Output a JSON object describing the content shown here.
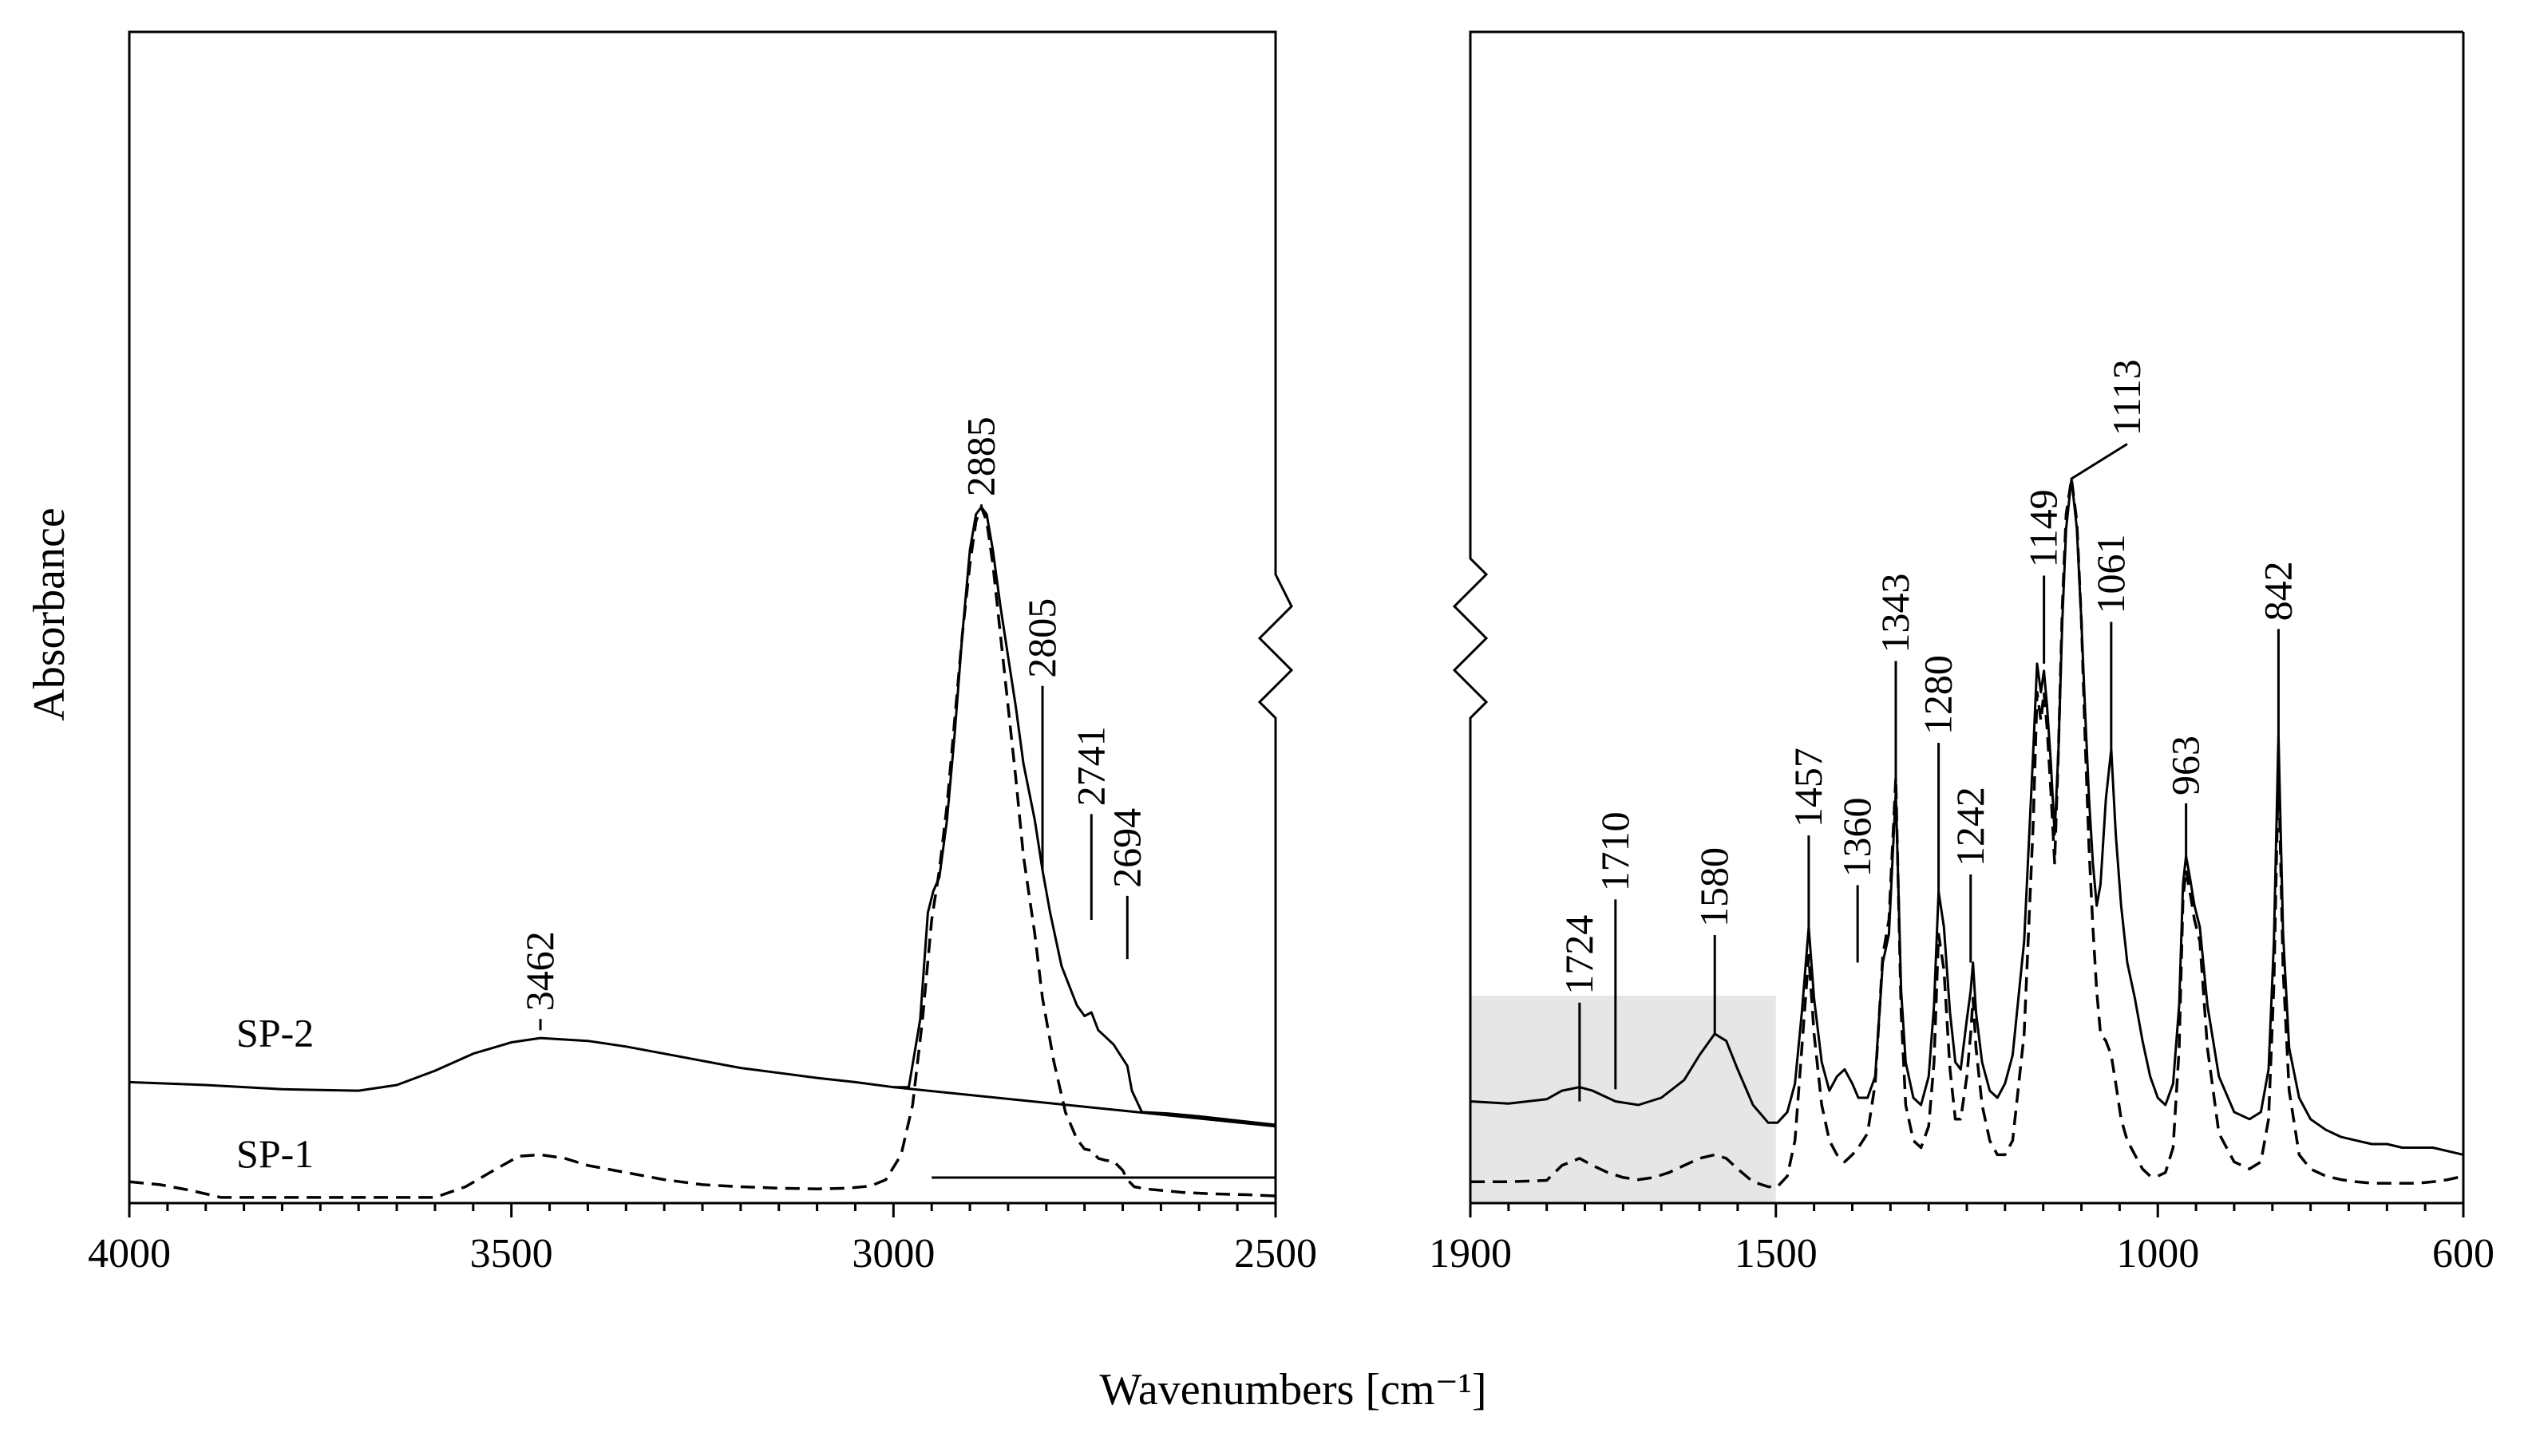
{
  "chart_data": {
    "type": "line",
    "title": "",
    "xlabel": "Wavenumbers [cm⁻¹]",
    "ylabel": "Absorbance",
    "colors": {
      "line": "#000000",
      "highlight": "#e6e6e6"
    },
    "panels": [
      {
        "name": "left",
        "xlim": [
          4000,
          2500
        ],
        "ylim": [
          0,
          1
        ],
        "ticks": [
          {
            "value": 4000,
            "label": "4000"
          },
          {
            "value": 3500,
            "label": "3500"
          },
          {
            "value": 3000,
            "label": "3000"
          },
          {
            "value": 2500,
            "label": "2500"
          }
        ],
        "peak_labels": [
          {
            "label": "3462",
            "x": 3462,
            "y": 0.252,
            "tip": 0.225
          },
          {
            "label": "2885",
            "x": 2885,
            "y": 0.975,
            "tip": 0.96
          },
          {
            "label": "2805",
            "x": 2805,
            "y": 0.72,
            "tip": 0.45
          },
          {
            "label": "2741",
            "x": 2741,
            "y": 0.54,
            "tip": 0.38
          },
          {
            "label": "2694",
            "x": 2694,
            "y": 0.425,
            "tip": 0.325
          }
        ]
      },
      {
        "name": "right",
        "xlim": [
          1900,
          600
        ],
        "ylim": [
          0,
          1
        ],
        "highlight_range": [
          1900,
          1500
        ],
        "ticks": [
          {
            "value": 1900,
            "label": "1900"
          },
          {
            "value": 1500,
            "label": "1500"
          },
          {
            "value": 1000,
            "label": "1000"
          },
          {
            "value": 600,
            "label": "600"
          }
        ],
        "peak_labels": [
          {
            "label": "1724",
            "x": 1757,
            "y": 0.275,
            "tip": 0.125
          },
          {
            "label": "1710",
            "x": 1710,
            "y": 0.42,
            "tip": 0.142
          },
          {
            "label": "1580",
            "x": 1580,
            "y": 0.37,
            "tip": 0.22
          },
          {
            "label": "1457",
            "x": 1457,
            "y": 0.51,
            "tip": 0.37
          },
          {
            "label": "1360",
            "x": 1393,
            "y": 0.44,
            "tip": 0.32
          },
          {
            "label": "1343",
            "x": 1343,
            "y": 0.755,
            "tip": 0.56
          },
          {
            "label": "1280",
            "x": 1287,
            "y": 0.64,
            "tip": 0.42
          },
          {
            "label": "1242",
            "x": 1245,
            "y": 0.455,
            "tip": 0.32
          },
          {
            "label": "1149",
            "x": 1149,
            "y": 0.875,
            "tip": 0.74
          },
          {
            "label": "1113",
            "x": 1040,
            "y": 1.06,
            "tip": 1.0,
            "tipX": 1113
          },
          {
            "label": "1061",
            "x": 1061,
            "y": 0.81,
            "tip": 0.62
          },
          {
            "label": "963",
            "x": 963,
            "y": 0.555,
            "tip": 0.47
          },
          {
            "label": "842",
            "x": 842,
            "y": 0.8,
            "tip": 0.64
          }
        ]
      }
    ],
    "series": [
      {
        "name": "SP-2",
        "style": "solid",
        "label_x": 3860,
        "label_y": 0.225,
        "left": {
          "x": [
            4000,
            3900,
            3800,
            3700,
            3650,
            3600,
            3550,
            3500,
            3462,
            3400,
            3350,
            3300,
            3250,
            3200,
            3150,
            3100,
            3050,
            3000,
            2980,
            2965,
            2955,
            2948,
            2940,
            2930,
            2920,
            2910,
            2900,
            2892,
            2885,
            2878,
            2870,
            2860,
            2850,
            2840,
            2830,
            2815,
            2805,
            2795,
            2780,
            2760,
            2750,
            2741,
            2732,
            2722,
            2712,
            2700,
            2694,
            2688,
            2675,
            2640,
            2600,
            2550,
            2500
          ],
          "y": [
            0.152,
            0.148,
            0.142,
            0.14,
            0.148,
            0.168,
            0.192,
            0.208,
            0.214,
            0.21,
            0.202,
            0.192,
            0.182,
            0.172,
            0.165,
            0.158,
            0.152,
            0.145,
            0.145,
            0.24,
            0.39,
            0.42,
            0.44,
            0.52,
            0.64,
            0.78,
            0.9,
            0.95,
            0.96,
            0.95,
            0.9,
            0.82,
            0.75,
            0.68,
            0.6,
            0.52,
            0.45,
            0.39,
            0.315,
            0.26,
            0.245,
            0.25,
            0.225,
            0.215,
            0.205,
            0.185,
            0.175,
            0.14,
            0.11,
            0.108,
            0.104,
            0.098,
            0.092
          ]
        },
        "right": {
          "x": [
            1900,
            1850,
            1800,
            1780,
            1757,
            1740,
            1710,
            1680,
            1650,
            1620,
            1600,
            1580,
            1565,
            1550,
            1530,
            1510,
            1498,
            1485,
            1475,
            1466,
            1457,
            1450,
            1440,
            1430,
            1420,
            1410,
            1400,
            1392,
            1380,
            1370,
            1360,
            1352,
            1343,
            1336,
            1330,
            1320,
            1310,
            1300,
            1293,
            1287,
            1280,
            1272,
            1265,
            1258,
            1250,
            1245,
            1242,
            1238,
            1230,
            1220,
            1210,
            1200,
            1190,
            1175,
            1163,
            1158,
            1153,
            1149,
            1145,
            1140,
            1135,
            1130,
            1125,
            1120,
            1113,
            1106,
            1100,
            1095,
            1090,
            1085,
            1080,
            1075,
            1068,
            1061,
            1055,
            1048,
            1040,
            1030,
            1020,
            1010,
            1000,
            990,
            980,
            972,
            967,
            963,
            958,
            952,
            945,
            935,
            920,
            900,
            880,
            865,
            855,
            848,
            842,
            836,
            828,
            815,
            800,
            780,
            760,
            740,
            720,
            700,
            680,
            660,
            640,
            620,
            600
          ],
          "y": [
            0.125,
            0.122,
            0.128,
            0.14,
            0.145,
            0.14,
            0.125,
            0.12,
            0.13,
            0.155,
            0.19,
            0.22,
            0.21,
            0.17,
            0.12,
            0.095,
            0.095,
            0.11,
            0.15,
            0.25,
            0.37,
            0.27,
            0.18,
            0.14,
            0.16,
            0.17,
            0.15,
            0.13,
            0.13,
            0.16,
            0.32,
            0.36,
            0.56,
            0.28,
            0.18,
            0.13,
            0.12,
            0.16,
            0.26,
            0.42,
            0.37,
            0.25,
            0.18,
            0.17,
            0.24,
            0.28,
            0.32,
            0.25,
            0.18,
            0.14,
            0.13,
            0.15,
            0.19,
            0.35,
            0.62,
            0.74,
            0.7,
            0.73,
            0.68,
            0.6,
            0.5,
            0.62,
            0.8,
            0.93,
            1.0,
            0.93,
            0.8,
            0.67,
            0.55,
            0.46,
            0.4,
            0.43,
            0.55,
            0.62,
            0.5,
            0.4,
            0.32,
            0.27,
            0.21,
            0.16,
            0.13,
            0.12,
            0.15,
            0.26,
            0.43,
            0.47,
            0.44,
            0.4,
            0.37,
            0.26,
            0.16,
            0.11,
            0.1,
            0.11,
            0.17,
            0.35,
            0.64,
            0.36,
            0.2,
            0.13,
            0.1,
            0.085,
            0.075,
            0.07,
            0.065,
            0.065,
            0.06,
            0.06,
            0.06,
            0.055,
            0.05
          ]
        },
        "baseline_to_right": 0.09
      },
      {
        "name": "SP-1",
        "style": "dashed",
        "label_x": 3860,
        "label_y": 0.055,
        "left": {
          "x": [
            4000,
            3960,
            3920,
            3880,
            3840,
            3800,
            3750,
            3700,
            3650,
            3600,
            3560,
            3520,
            3490,
            3462,
            3430,
            3400,
            3350,
            3300,
            3250,
            3200,
            3150,
            3100,
            3060,
            3030,
            3010,
            2990,
            2975,
            2962,
            2950,
            2940,
            2930,
            2920,
            2910,
            2900,
            2892,
            2885,
            2878,
            2870,
            2860,
            2850,
            2840,
            2830,
            2815,
            2805,
            2790,
            2775,
            2760,
            2750,
            2741,
            2732,
            2722,
            2712,
            2700,
            2694,
            2685,
            2670,
            2650,
            2620,
            2580,
            2540,
            2500
          ],
          "y": [
            0.012,
            0.008,
            0.0,
            -0.01,
            -0.01,
            -0.01,
            -0.01,
            -0.01,
            -0.01,
            -0.01,
            0.005,
            0.03,
            0.048,
            0.05,
            0.045,
            0.035,
            0.025,
            0.015,
            0.008,
            0.005,
            0.003,
            0.002,
            0.003,
            0.006,
            0.015,
            0.05,
            0.12,
            0.24,
            0.38,
            0.45,
            0.54,
            0.66,
            0.78,
            0.88,
            0.94,
            0.96,
            0.94,
            0.88,
            0.78,
            0.68,
            0.58,
            0.47,
            0.36,
            0.27,
            0.18,
            0.11,
            0.072,
            0.058,
            0.056,
            0.045,
            0.042,
            0.041,
            0.028,
            0.015,
            0.005,
            0.002,
            0.0,
            -0.003,
            -0.005,
            -0.006,
            -0.008
          ]
        },
        "right": {
          "x": [
            1900,
            1850,
            1800,
            1780,
            1757,
            1740,
            1720,
            1700,
            1680,
            1660,
            1640,
            1620,
            1600,
            1580,
            1565,
            1550,
            1530,
            1510,
            1498,
            1485,
            1475,
            1466,
            1457,
            1450,
            1440,
            1430,
            1420,
            1410,
            1400,
            1392,
            1380,
            1370,
            1360,
            1352,
            1343,
            1336,
            1330,
            1320,
            1310,
            1300,
            1293,
            1287,
            1280,
            1272,
            1265,
            1258,
            1250,
            1245,
            1242,
            1238,
            1230,
            1220,
            1210,
            1200,
            1190,
            1175,
            1163,
            1158,
            1153,
            1149,
            1145,
            1140,
            1135,
            1130,
            1125,
            1120,
            1113,
            1106,
            1100,
            1095,
            1090,
            1085,
            1080,
            1075,
            1068,
            1061,
            1055,
            1048,
            1040,
            1030,
            1020,
            1010,
            1000,
            990,
            980,
            972,
            967,
            963,
            958,
            952,
            945,
            935,
            920,
            900,
            880,
            865,
            855,
            848,
            842,
            836,
            828,
            815,
            800,
            780,
            760,
            740,
            720,
            700,
            680,
            660,
            640,
            620,
            600
          ],
          "y": [
            0.012,
            0.012,
            0.014,
            0.035,
            0.045,
            0.035,
            0.025,
            0.018,
            0.015,
            0.018,
            0.025,
            0.035,
            0.045,
            0.05,
            0.045,
            0.03,
            0.012,
            0.005,
            0.005,
            0.02,
            0.07,
            0.2,
            0.33,
            0.22,
            0.12,
            0.07,
            0.05,
            0.04,
            0.05,
            0.06,
            0.08,
            0.15,
            0.33,
            0.38,
            0.58,
            0.25,
            0.12,
            0.07,
            0.06,
            0.09,
            0.18,
            0.36,
            0.31,
            0.17,
            0.1,
            0.1,
            0.16,
            0.22,
            0.27,
            0.2,
            0.12,
            0.07,
            0.05,
            0.05,
            0.07,
            0.22,
            0.52,
            0.7,
            0.66,
            0.7,
            0.65,
            0.56,
            0.46,
            0.62,
            0.82,
            0.95,
            1.0,
            0.94,
            0.8,
            0.63,
            0.48,
            0.37,
            0.28,
            0.22,
            0.21,
            0.19,
            0.15,
            0.1,
            0.07,
            0.05,
            0.03,
            0.02,
            0.02,
            0.025,
            0.06,
            0.2,
            0.41,
            0.45,
            0.42,
            0.38,
            0.35,
            0.2,
            0.08,
            0.04,
            0.03,
            0.04,
            0.1,
            0.29,
            0.6,
            0.31,
            0.14,
            0.05,
            0.03,
            0.02,
            0.015,
            0.012,
            0.01,
            0.01,
            0.01,
            0.01,
            0.012,
            0.015,
            0.02
          ]
        },
        "baseline_to_right": 0.018
      }
    ]
  }
}
